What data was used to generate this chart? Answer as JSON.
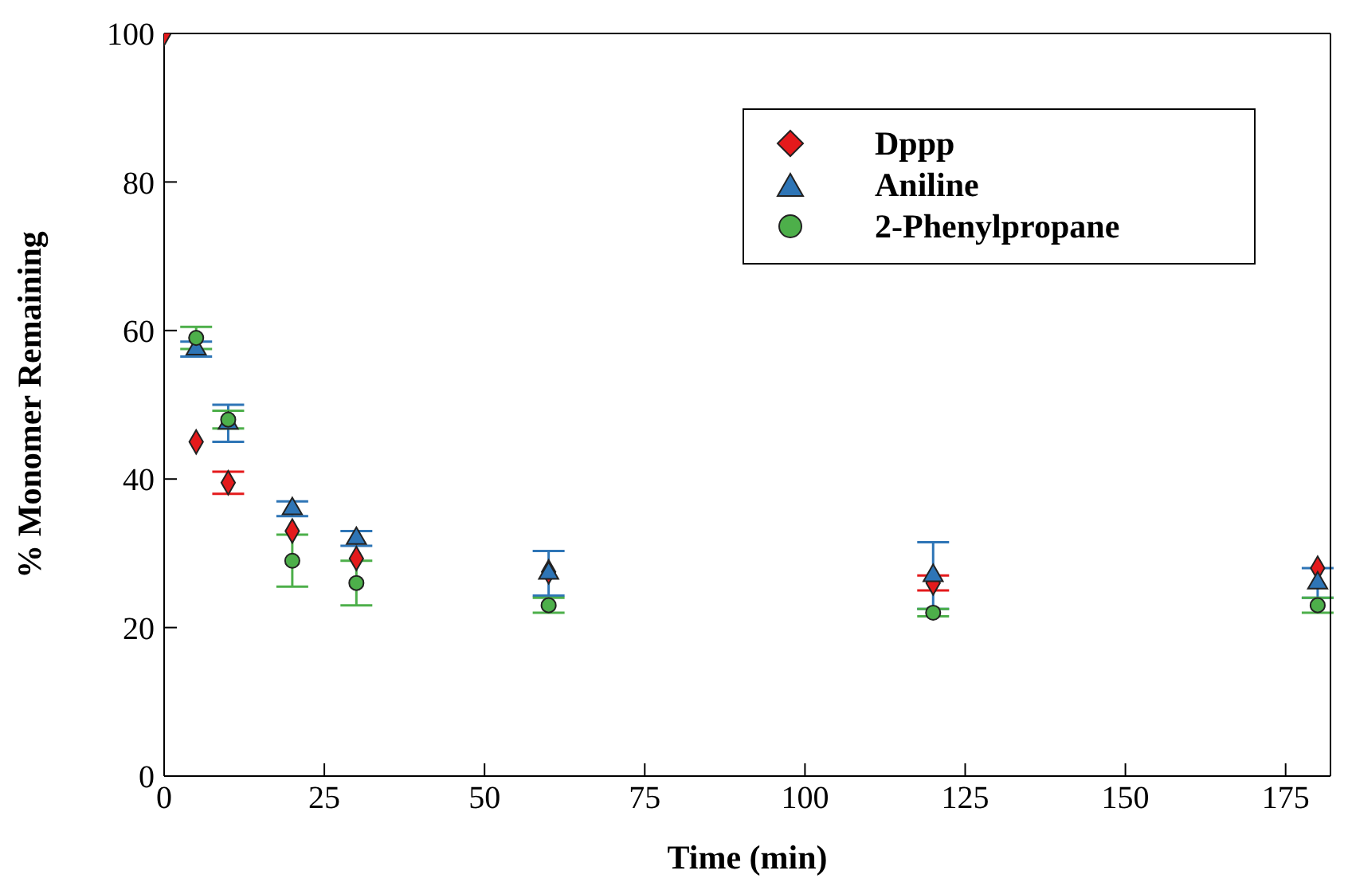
{
  "chart_data": {
    "type": "scatter",
    "xlabel": "Time (min)",
    "ylabel": "% Monomer Remaining",
    "xlim": [
      0,
      182
    ],
    "xticks": [
      0,
      25,
      50,
      75,
      100,
      125,
      150,
      175
    ],
    "ylim": [
      0,
      100
    ],
    "yticks": [
      0,
      20,
      40,
      60,
      80,
      100
    ],
    "grid": false,
    "legend": "top right",
    "series": [
      {
        "name": "Dppp",
        "color": "#e41a1c",
        "marker": "diamond",
        "x": [
          0,
          5,
          10,
          20,
          30,
          60,
          120,
          180
        ],
        "values": [
          100,
          45,
          39.5,
          33,
          29.3,
          27.5,
          26,
          28
        ],
        "errors": [
          null,
          null,
          1.5,
          null,
          null,
          null,
          1,
          null
        ]
      },
      {
        "name": "Aniline",
        "color": "#2e75b6",
        "marker": "triangle",
        "x": [
          5,
          10,
          20,
          30,
          60,
          120,
          180
        ],
        "values": [
          57.5,
          47.5,
          36,
          32,
          27.3,
          27,
          26
        ],
        "errors": [
          1,
          2.5,
          1,
          1,
          3,
          4.5,
          2
        ]
      },
      {
        "name": "2-Phenylpropane",
        "color": "#4daf4a",
        "marker": "circle",
        "x": [
          5,
          10,
          20,
          30,
          60,
          120,
          180
        ],
        "values": [
          59,
          48,
          29,
          26,
          23,
          22,
          23
        ],
        "errors": [
          1.5,
          1.2,
          3.5,
          3,
          1,
          0.5,
          1
        ]
      }
    ]
  }
}
